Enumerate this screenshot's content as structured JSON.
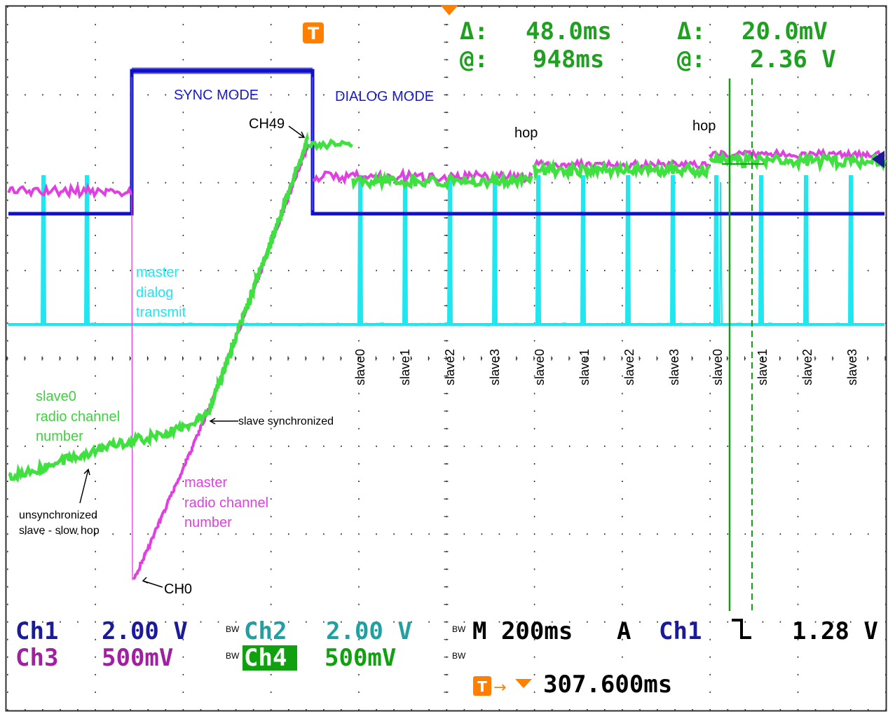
{
  "colors": {
    "ch1": "#1010c8",
    "ch2": "#20e6f0",
    "ch3": "#e040e0",
    "ch4": "#40e040",
    "cursor_text": "#20a020",
    "cursor_line": "#10a010",
    "ch1_label": "#1a1a9a",
    "ch2_label": "#20a0a0",
    "ch3_label": "#a020a0",
    "ch4_label": "#10a010",
    "trigger": "#ff8000",
    "grid": "#303030",
    "background": "#ffffff"
  },
  "cursor_readout": {
    "time_delta_symbol": "Δ:",
    "time_delta": "48.0ms",
    "time_at_symbol": "@:",
    "time_at": "948ms",
    "volt_delta_symbol": "Δ:",
    "volt_delta": "20.0mV",
    "volt_at_symbol": "@:",
    "volt_at": "2.36 V"
  },
  "trigger_marker_letter": "T",
  "annotations": {
    "sync_mode": "SYNC MODE",
    "dialog_mode": "DIALOG MODE",
    "ch49": "CH49",
    "ch0": "CH0",
    "hop1": "hop",
    "hop2": "hop",
    "master_dialog_transmit": [
      "master",
      "dialog",
      "transmit"
    ],
    "slave0_radio": [
      "slave0",
      "radio channel",
      "number"
    ],
    "master_radio": [
      "master",
      "radio channel",
      "number"
    ],
    "slave_synchronized": "slave synchronized",
    "unsync": [
      "unsynchronized",
      "slave - slow hop"
    ],
    "slave_labels": [
      "slave0",
      "slave1",
      "slave2",
      "slave3",
      "slave0",
      "slave1",
      "slave2",
      "slave3",
      "slave0",
      "slave1",
      "slave2",
      "slave3"
    ]
  },
  "channels": {
    "ch1": {
      "name": "Ch1",
      "scale": "2.00 V"
    },
    "ch2": {
      "name": "Ch2",
      "scale": "2.00 V",
      "bw": "BW"
    },
    "ch3": {
      "name": "Ch3",
      "scale": "500mV"
    },
    "ch4": {
      "name": "Ch4",
      "scale": "500mV",
      "bw": "BW"
    }
  },
  "timebase": {
    "bw": "BW",
    "label": "M 200ms",
    "trigger_mode": "A",
    "trigger_source": "Ch1",
    "trigger_slope_symbol": "falling",
    "trigger_level": "1.28 V",
    "bw2": "BW"
  },
  "trigger_position": {
    "letter": "T",
    "arrow": "→",
    "value": "307.600ms"
  }
}
